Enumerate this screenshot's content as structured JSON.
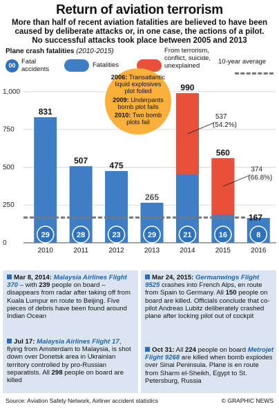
{
  "header": {
    "title": "Return of aviation terrorism",
    "subtitle_lines": [
      "More than half of recent aviation fatalities are believed to have been",
      "caused by deliberate attacks or, in one case, the actions of a pilot.",
      "No successful attacks took place between 2005 and 2013"
    ]
  },
  "chart_heading": {
    "bold": "Plane crash fatalities",
    "italic": "(2010-2015)"
  },
  "legend": {
    "accidents_sample": "00",
    "accidents_label": "Fatal accidents",
    "fatalities_label": "Fatalities",
    "terror_label": "From terrorism, conflict, suicide, unexplained",
    "average_label": "10-year average"
  },
  "colors": {
    "fatalities": "#3f7ec4",
    "terror": "#e9503a",
    "circle": "#2d72bb",
    "callout": "#fbb03b",
    "panel": "#dbe5f1"
  },
  "callout": {
    "items": [
      {
        "year": "2006:",
        "text": "Transatlantic liquid explosives plot foiled"
      },
      {
        "year": "2009:",
        "text": "Underpants bomb plot fails"
      },
      {
        "year": "2010:",
        "text": "Two bomb plots fail"
      }
    ]
  },
  "chart_data": {
    "type": "bar",
    "title": "Plane crash fatalities (2010-2015)",
    "categories": [
      "2010",
      "2011",
      "2012",
      "2013",
      "2014",
      "2015",
      "2016"
    ],
    "series": [
      {
        "name": "Fatalities",
        "values": [
          831,
          507,
          475,
          265,
          990,
          560,
          null
        ]
      },
      {
        "name": "From terrorism, conflict, suicide, unexplained",
        "values": [
          0,
          0,
          0,
          0,
          537,
          374,
          0
        ]
      },
      {
        "name": "Fatal accidents",
        "values": [
          29,
          28,
          23,
          29,
          21,
          16,
          8
        ]
      }
    ],
    "value_labels": [
      "831",
      "507",
      "475",
      "265",
      "990",
      "560",
      ""
    ],
    "terror_labels": [
      {
        "category": "2014",
        "value": "537",
        "pct": "(54.2%)"
      },
      {
        "category": "2015",
        "value": "374",
        "pct": "(66.8%)"
      }
    ],
    "average": {
      "label": "10-year average",
      "value": 167,
      "value_label": "167"
    },
    "y_ticks": [
      "1,000",
      "750",
      "500",
      "250",
      "0"
    ],
    "y_tick_values": [
      1000,
      750,
      500,
      250,
      0
    ],
    "ylim": [
      0,
      1050
    ]
  },
  "stories": {
    "left": [
      {
        "date": "Mar 8, 2014:",
        "airline": "Malaysia Airlines Flight 370",
        "text_a": " – with ",
        "num": "239",
        "text_b": " people on board – disappears from radar after taking off from Kuala Lumpur en route to Beijing. Five pieces of debris have been found around Indian Ocean"
      },
      {
        "date": "Jul 17:",
        "airline": "Malaysia Airlines Flight 17",
        "text_a": ", flying from Amsterdam to Malaysia, is shot down over Donetsk area in Ukrainian territory controlled by pro-Russian separatists. All ",
        "num": "298",
        "text_b": " people on board are killed"
      }
    ],
    "right": [
      {
        "date": "Mar 24, 2015:",
        "airline": "Germanwings Flight 9525",
        "text_a": " crashes into French Alps, en route from Spain to Germany. All ",
        "num": "150",
        "text_b": " people on board are killed. Officials conclude that co-pilot Andreas Lubitz deliberately crashed plane after locking pilot out of cockpit"
      },
      {
        "date": "Oct 31:",
        "airline": "Metrojet Flight 9268",
        "text_a": " are killed when bomb explodes over Sinai Peninsula. Plane is en route from Sharm el-Sheikh, Egypt to St. Petersburg, Russia",
        "num": "224",
        "prefix": "All ",
        "suffix_mid": " people on board "
      }
    ]
  },
  "footer": {
    "source": "Source: Aviation Safety Network, Airliner accident statistics",
    "credit": "© GRAPHIC NEWS"
  }
}
